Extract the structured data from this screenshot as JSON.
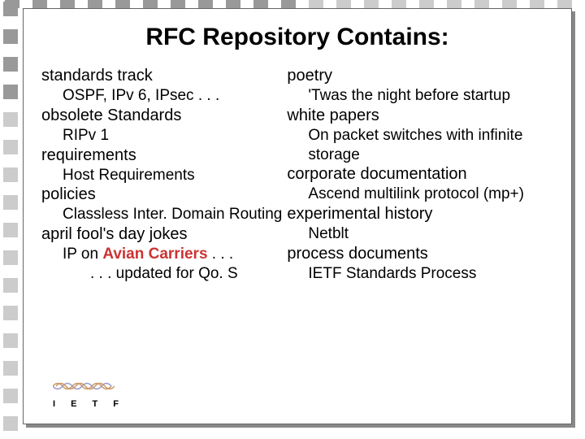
{
  "title": "RFC Repository Contains:",
  "border": {
    "dark_color": "#999999",
    "light_color": "#cccccc",
    "square_size": 18
  },
  "left_column": [
    {
      "type": "cat",
      "text": "standards track"
    },
    {
      "type": "sub",
      "text": "OSPF, IPv 6, IPsec . . ."
    },
    {
      "type": "cat",
      "text": "obsolete Standards"
    },
    {
      "type": "sub",
      "text": "RIPv 1"
    },
    {
      "type": "cat",
      "text": "requirements"
    },
    {
      "type": "sub",
      "text": "Host Requirements"
    },
    {
      "type": "cat",
      "text": "policies"
    },
    {
      "type": "sub",
      "text": "Classless Inter. Domain Routing"
    },
    {
      "type": "cat",
      "text": "april fool's day jokes"
    },
    {
      "type": "sub",
      "html": "IP on <span class=\"avian\">Avian Carriers</span> . . ."
    },
    {
      "type": "sub",
      "text": ". . . updated for Qo. S",
      "extra_indent": true
    }
  ],
  "right_column": [
    {
      "type": "cat",
      "text": "poetry"
    },
    {
      "type": "sub",
      "text": "'Twas the night before startup"
    },
    {
      "type": "cat",
      "text": "white papers"
    },
    {
      "type": "sub",
      "text": "On packet switches with infinite storage"
    },
    {
      "type": "cat",
      "text": "corporate documentation"
    },
    {
      "type": "sub",
      "text": "Ascend multilink protocol (mp+)"
    },
    {
      "type": "cat",
      "text": "experimental history"
    },
    {
      "type": "sub",
      "text": "Netblt"
    },
    {
      "type": "cat",
      "text": "process documents"
    },
    {
      "type": "sub",
      "text": "IETF Standards Process"
    }
  ],
  "logo": {
    "text": "I E T F",
    "wave_color_1": "#cc9966",
    "wave_color_2": "#9999cc"
  },
  "colors": {
    "background": "#ffffff",
    "text": "#000000",
    "avian": "#cc3333",
    "slide_border": "#666666",
    "slide_shadow": "#888888"
  }
}
